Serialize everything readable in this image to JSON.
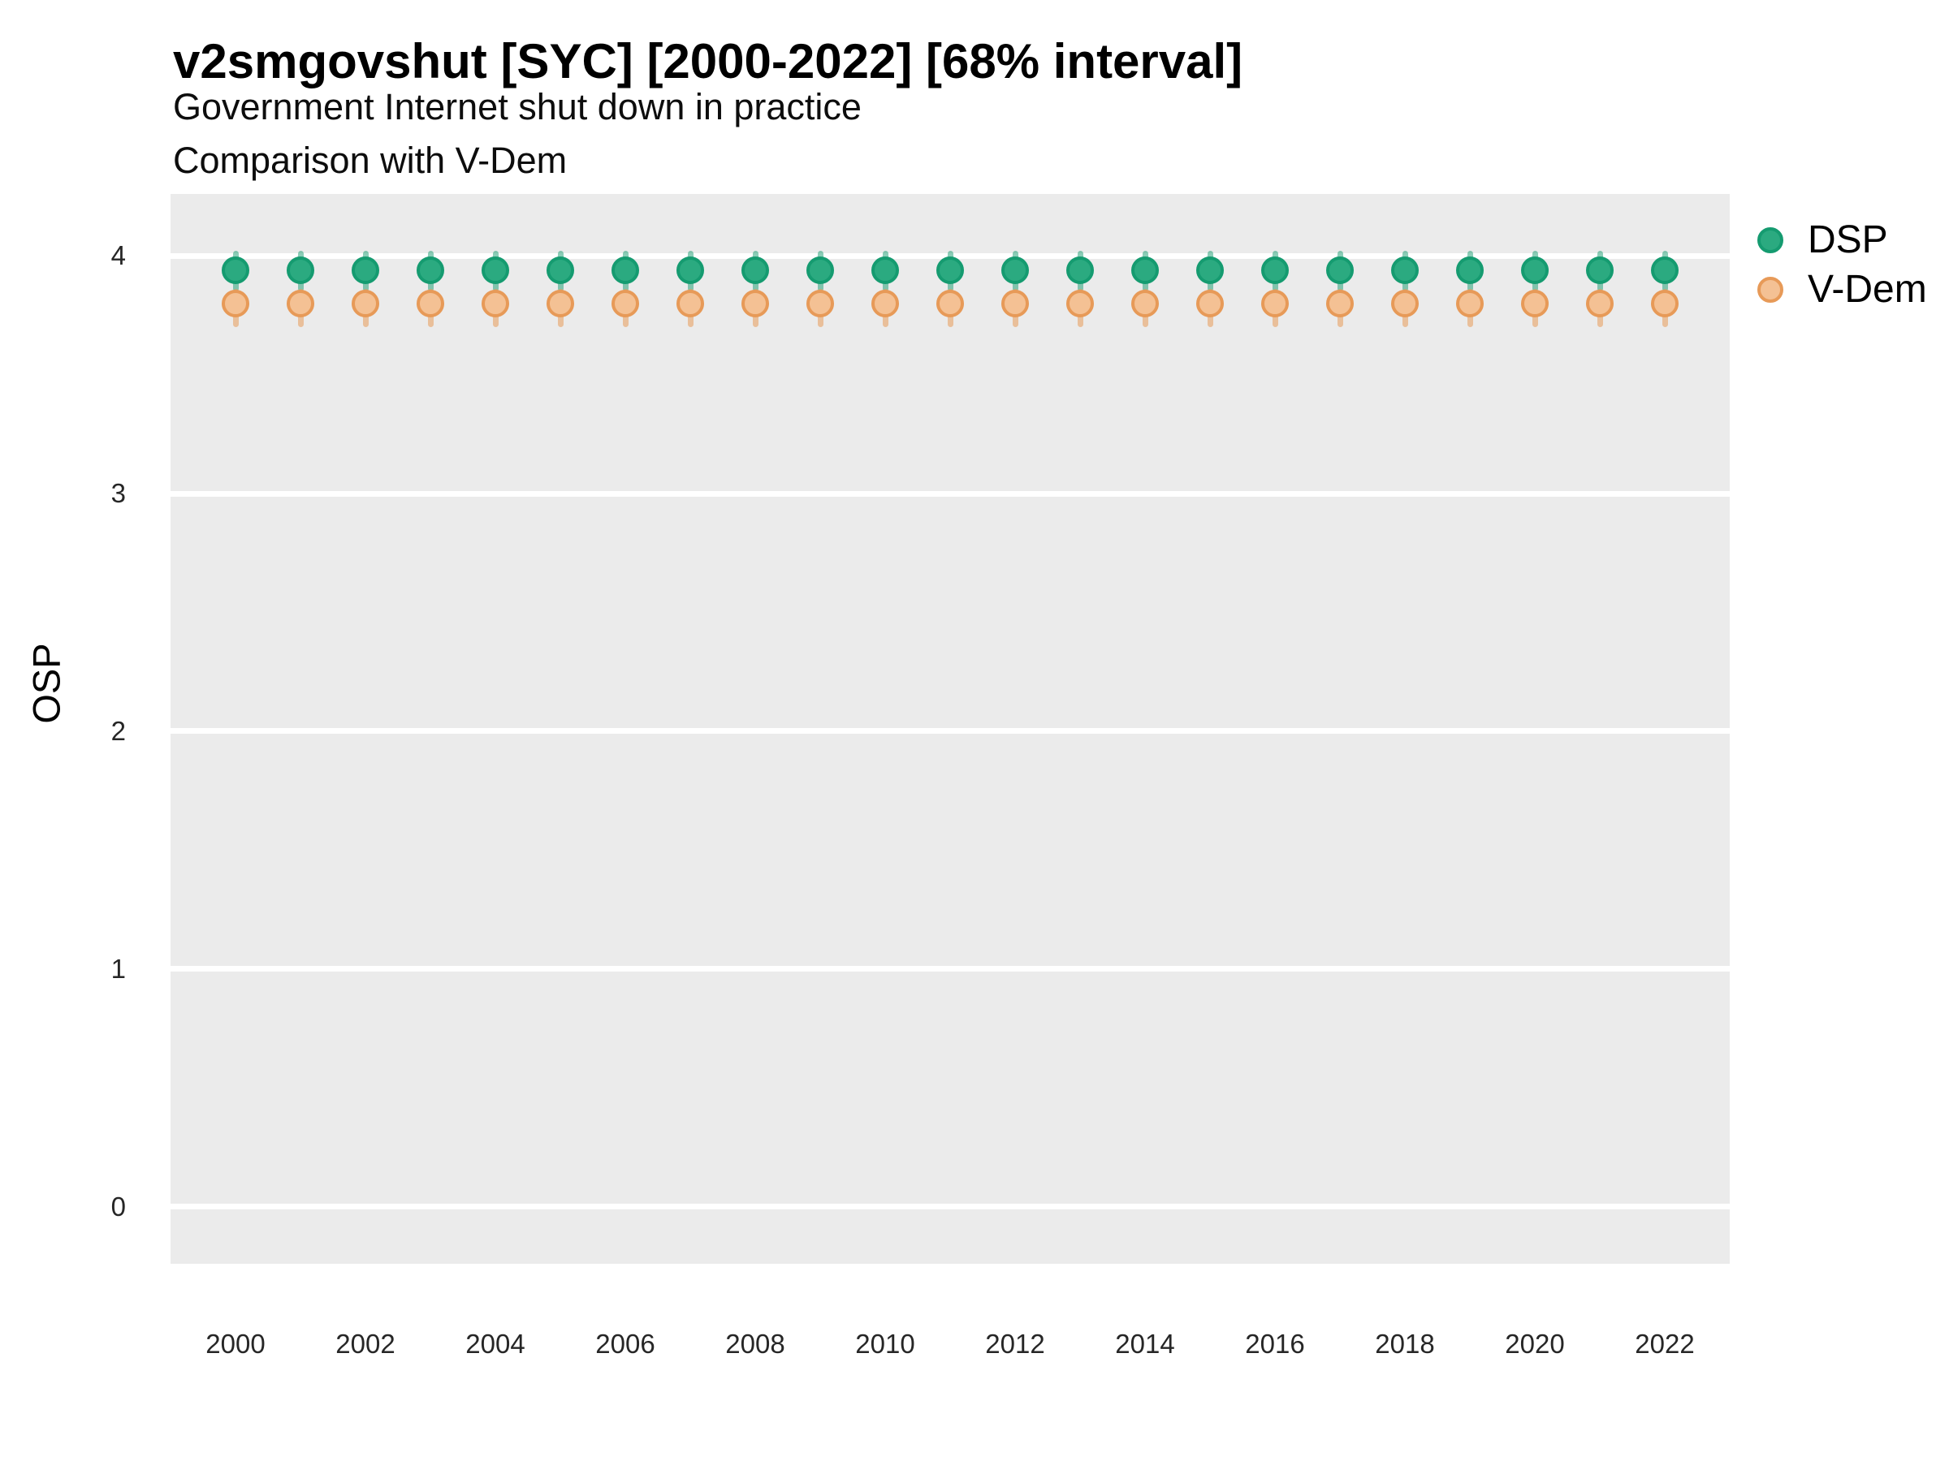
{
  "chart_data": {
    "type": "scatter",
    "title": "v2smgovshut [SYC] [2000-2022] [68% interval]",
    "subtitle1": "Government Internet shut down in practice",
    "subtitle2": "Comparison with V-Dem",
    "xlabel": "",
    "ylabel": "OSP",
    "x": [
      2000,
      2001,
      2002,
      2003,
      2004,
      2005,
      2006,
      2007,
      2008,
      2009,
      2010,
      2011,
      2012,
      2013,
      2014,
      2015,
      2016,
      2017,
      2018,
      2019,
      2020,
      2021,
      2022
    ],
    "series": [
      {
        "name": "DSP",
        "values": [
          3.94,
          3.94,
          3.94,
          3.94,
          3.94,
          3.94,
          3.94,
          3.94,
          3.94,
          3.94,
          3.94,
          3.94,
          3.94,
          3.94,
          3.94,
          3.94,
          3.94,
          3.94,
          3.94,
          3.94,
          3.94,
          3.94,
          3.94
        ],
        "lower": [
          3.85,
          3.85,
          3.85,
          3.85,
          3.85,
          3.85,
          3.85,
          3.85,
          3.85,
          3.85,
          3.85,
          3.85,
          3.85,
          3.85,
          3.85,
          3.85,
          3.85,
          3.85,
          3.85,
          3.85,
          3.85,
          3.85,
          3.85
        ],
        "upper": [
          4.02,
          4.02,
          4.02,
          4.02,
          4.02,
          4.02,
          4.02,
          4.02,
          4.02,
          4.02,
          4.02,
          4.02,
          4.02,
          4.02,
          4.02,
          4.02,
          4.02,
          4.02,
          4.02,
          4.02,
          4.02,
          4.02,
          4.02
        ],
        "fill": "#2baa80",
        "stroke": "#159b70",
        "bar": "rgba(21, 155, 112, 0.5)"
      },
      {
        "name": "V-Dem",
        "values": [
          3.8,
          3.8,
          3.8,
          3.8,
          3.8,
          3.8,
          3.8,
          3.8,
          3.8,
          3.8,
          3.8,
          3.8,
          3.8,
          3.8,
          3.8,
          3.8,
          3.8,
          3.8,
          3.8,
          3.8,
          3.8,
          3.8,
          3.8
        ],
        "lower": [
          3.7,
          3.7,
          3.7,
          3.7,
          3.7,
          3.7,
          3.7,
          3.7,
          3.7,
          3.7,
          3.7,
          3.7,
          3.7,
          3.7,
          3.7,
          3.7,
          3.7,
          3.7,
          3.7,
          3.7,
          3.7,
          3.7,
          3.7
        ],
        "upper": [
          3.86,
          3.86,
          3.86,
          3.86,
          3.86,
          3.86,
          3.86,
          3.86,
          3.86,
          3.86,
          3.86,
          3.86,
          3.86,
          3.86,
          3.86,
          3.86,
          3.86,
          3.86,
          3.86,
          3.86,
          3.86,
          3.86,
          3.86
        ],
        "fill": "#f4c194",
        "stroke": "#e79a58",
        "bar": "rgba(231, 154, 88, 0.55)"
      }
    ],
    "xlim": [
      1999,
      2023
    ],
    "ylim": [
      -0.24,
      4.26
    ],
    "yticks": [
      4,
      3,
      2,
      1,
      0
    ],
    "xticks": [
      2000,
      2002,
      2004,
      2006,
      2008,
      2010,
      2012,
      2014,
      2016,
      2018,
      2020,
      2022
    ],
    "grid": "horizontal-major-only",
    "panel_bg": "#EBEBEB",
    "grid_color": "#FFFFFF",
    "legend_position": "top-right",
    "interval_label": "68% interval"
  }
}
